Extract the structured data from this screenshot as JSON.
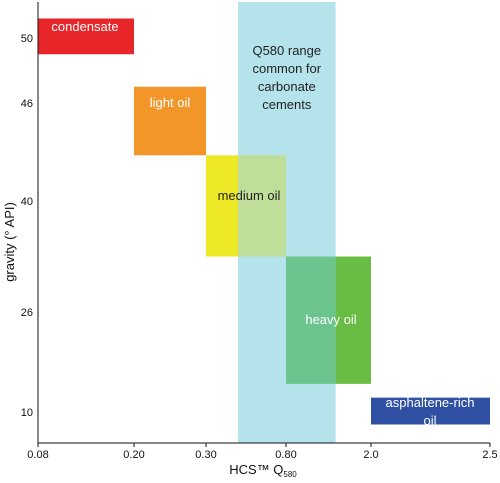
{
  "chart_data": {
    "type": "range-boxes",
    "xlabel": "HCS™ Q",
    "xlabel_subscript": "580",
    "ylabel": "gravity (° API)",
    "x_ticks": [
      "0.08",
      "0.20",
      "0.30",
      "0.80",
      "2.0",
      "2.5"
    ],
    "y_ticks": [
      "50",
      "46",
      "40",
      "26",
      "10"
    ],
    "band": {
      "label_lines": [
        "Q580 range",
        "common for",
        "carbonate",
        "cements"
      ],
      "x_range": [
        0.5,
        1.5
      ],
      "color": "#b5e3ec"
    },
    "boxes": [
      {
        "label_lines": [
          "condensate"
        ],
        "x_range": [
          0.08,
          0.2
        ],
        "y_range": [
          49,
          51.2
        ],
        "color": "#e8262a",
        "text_color": "#ffffff"
      },
      {
        "label_lines": [
          "light oil"
        ],
        "x_range": [
          0.2,
          0.3
        ],
        "y_range": [
          42.8,
          47
        ],
        "color": "#f3962a",
        "text_color": "#ffffff"
      },
      {
        "label_lines": [
          "medium oil"
        ],
        "x_range": [
          0.3,
          0.8
        ],
        "y_range": [
          33,
          42.8
        ],
        "color": "#ede926",
        "overlap_color": "#bfde99",
        "text_color": "#222222"
      },
      {
        "label_lines": [
          "heavy oil"
        ],
        "x_range": [
          0.8,
          2.0
        ],
        "y_range": [
          14.5,
          33
        ],
        "color": "#69bd44",
        "overlap_color": "#6cc48f",
        "text_color": "#ffffff"
      },
      {
        "label_lines": [
          "asphaltene-rich",
          "oil"
        ],
        "x_range": [
          2.0,
          2.5
        ],
        "y_range": [
          8,
          12.3
        ],
        "color": "#3050a3",
        "text_color": "#ffffff"
      }
    ]
  }
}
